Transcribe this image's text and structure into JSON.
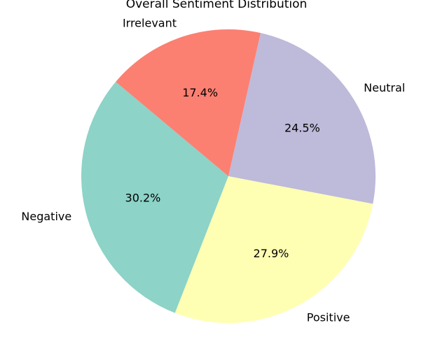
{
  "chart_data": {
    "type": "pie",
    "title": "Overall Sentiment Distribution",
    "start_angle_deg": 140,
    "direction": "counterclockwise",
    "slices": [
      {
        "label": "Negative",
        "value": 30.2,
        "display": "30.2%",
        "color": "#8dd3c7"
      },
      {
        "label": "Positive",
        "value": 27.9,
        "display": "27.9%",
        "color": "#ffffb3"
      },
      {
        "label": "Neutral",
        "value": 24.5,
        "display": "24.5%",
        "color": "#bebada"
      },
      {
        "label": "Irrelevant",
        "value": 17.4,
        "display": "17.4%",
        "color": "#fb8072"
      }
    ]
  }
}
